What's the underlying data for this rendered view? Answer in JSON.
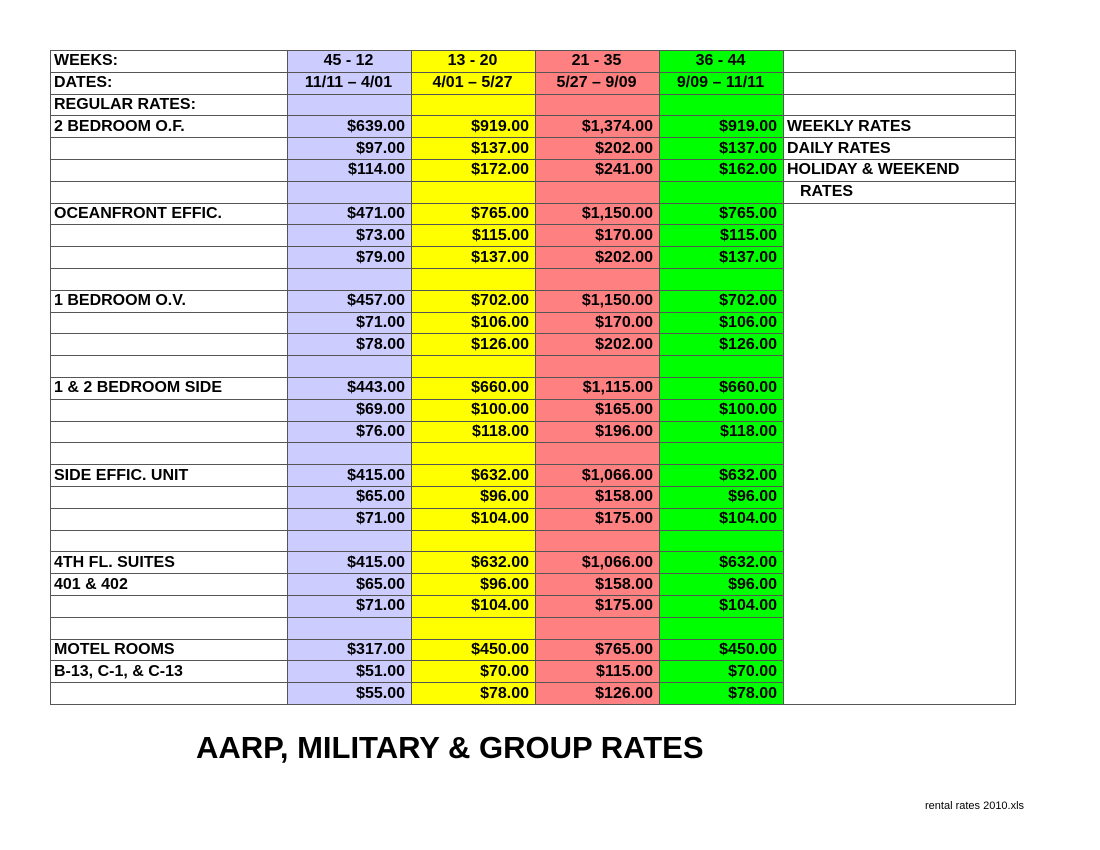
{
  "header": {
    "weeks_label": "WEEKS:",
    "dates_label": "DATES:",
    "regular_label": "REGULAR RATES:",
    "weeks": [
      "45 - 12",
      "13 - 20",
      "21 - 35",
      "36 - 44"
    ],
    "dates": [
      "11/11 – 4/01",
      "4/01 – 5/27",
      "5/27 – 9/09",
      "9/09 – 11/11"
    ]
  },
  "season_colors": [
    "#ccccff",
    "#ffff00",
    "#ff8080",
    "#00ff00"
  ],
  "legend": [
    "WEEKLY RATES",
    "DAILY RATES",
    "HOLIDAY & WEEKEND",
    "RATES"
  ],
  "units": [
    {
      "name": "2 BEDROOM O.F.",
      "sub": "",
      "rates": [
        [
          "$639.00",
          "$919.00",
          "$1,374.00",
          "$919.00"
        ],
        [
          "$97.00",
          "$137.00",
          "$202.00",
          "$137.00"
        ],
        [
          "$114.00",
          "$172.00",
          "$241.00",
          "$162.00"
        ]
      ]
    },
    {
      "name": "OCEANFRONT EFFIC.",
      "sub": "",
      "rates": [
        [
          "$471.00",
          "$765.00",
          "$1,150.00",
          "$765.00"
        ],
        [
          "$73.00",
          "$115.00",
          "$170.00",
          "$115.00"
        ],
        [
          "$79.00",
          "$137.00",
          "$202.00",
          "$137.00"
        ]
      ]
    },
    {
      "name": "1 BEDROOM O.V.",
      "sub": "",
      "rates": [
        [
          "$457.00",
          "$702.00",
          "$1,150.00",
          "$702.00"
        ],
        [
          "$71.00",
          "$106.00",
          "$170.00",
          "$106.00"
        ],
        [
          "$78.00",
          "$126.00",
          "$202.00",
          "$126.00"
        ]
      ]
    },
    {
      "name": "1 & 2 BEDROOM SIDE",
      "sub": "",
      "rates": [
        [
          "$443.00",
          "$660.00",
          "$1,115.00",
          "$660.00"
        ],
        [
          "$69.00",
          "$100.00",
          "$165.00",
          "$100.00"
        ],
        [
          "$76.00",
          "$118.00",
          "$196.00",
          "$118.00"
        ]
      ]
    },
    {
      "name": "SIDE EFFIC. UNIT",
      "sub": "",
      "rates": [
        [
          "$415.00",
          "$632.00",
          "$1,066.00",
          "$632.00"
        ],
        [
          "$65.00",
          "$96.00",
          "$158.00",
          "$96.00"
        ],
        [
          "$71.00",
          "$104.00",
          "$175.00",
          "$104.00"
        ]
      ]
    },
    {
      "name": "4TH FL. SUITES",
      "sub": "401 & 402",
      "rates": [
        [
          "$415.00",
          "$632.00",
          "$1,066.00",
          "$632.00"
        ],
        [
          "$65.00",
          "$96.00",
          "$158.00",
          "$96.00"
        ],
        [
          "$71.00",
          "$104.00",
          "$175.00",
          "$104.00"
        ]
      ]
    },
    {
      "name": "MOTEL ROOMS",
      "sub": "B-13, C-1, & C-13",
      "rates": [
        [
          "$317.00",
          "$450.00",
          "$765.00",
          "$450.00"
        ],
        [
          "$51.00",
          "$70.00",
          "$115.00",
          "$70.00"
        ],
        [
          "$55.00",
          "$78.00",
          "$126.00",
          "$78.00"
        ]
      ]
    }
  ],
  "footer": {
    "title": "AARP, MILITARY & GROUP RATES",
    "filename": "rental rates 2010.xls"
  }
}
